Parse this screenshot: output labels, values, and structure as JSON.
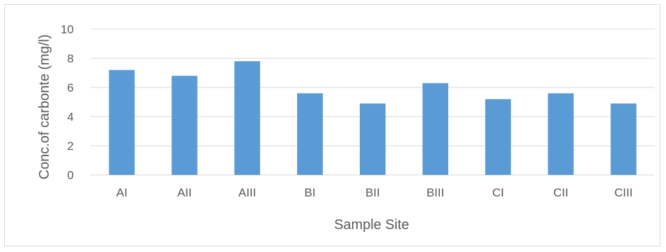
{
  "chart_data": {
    "type": "bar",
    "title": "",
    "xlabel": "Sample Site",
    "ylabel": "Conc.of carbonte (mg/l)",
    "categories": [
      "AI",
      "AII",
      "AIII",
      "BI",
      "BII",
      "BIII",
      "CI",
      "CII",
      "CIII"
    ],
    "values": [
      7.2,
      6.8,
      7.8,
      5.6,
      4.9,
      6.3,
      5.2,
      5.6,
      4.9
    ],
    "ylim": [
      0,
      10
    ],
    "yticks": [
      0,
      2,
      4,
      6,
      8,
      10
    ],
    "grid": true,
    "legend": "none",
    "bar_color": "#5b9bd5",
    "grid_color": "#d9d9d9"
  }
}
